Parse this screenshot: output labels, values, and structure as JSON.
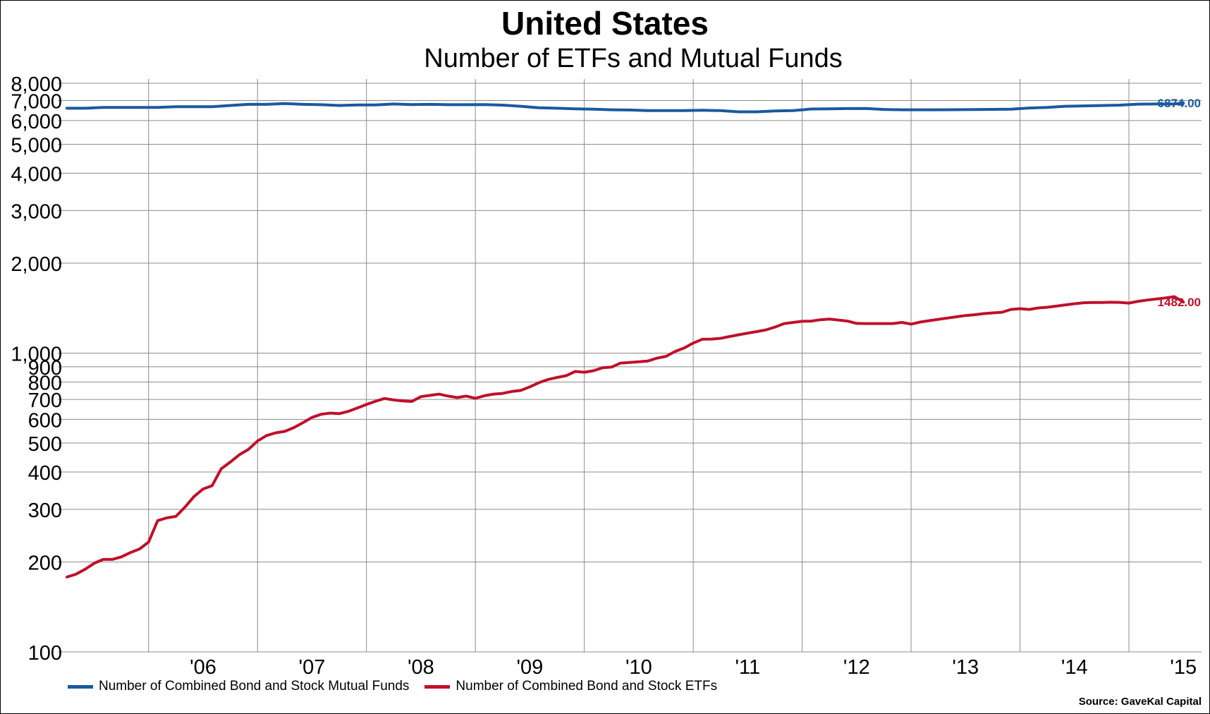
{
  "title": "United States",
  "subtitle": "Number of ETFs and Mutual Funds",
  "source": "Source: GaveKal Capital",
  "colors": {
    "mutual_funds": "#1a5a9e",
    "etfs": "#c0102a",
    "grid": "#8c8c8c"
  },
  "chart_data": {
    "type": "line",
    "title": "United States",
    "subtitle": "Number of ETFs and Mutual Funds",
    "y_scale": "log",
    "ylim": [
      100,
      8000
    ],
    "y_ticks": [
      100,
      200,
      300,
      400,
      500,
      600,
      700,
      800,
      900,
      1000,
      2000,
      3000,
      4000,
      5000,
      6000,
      7000,
      8000
    ],
    "y_tick_labels": [
      "100",
      "200",
      "300",
      "400",
      "500",
      "600",
      "700",
      "800",
      "900",
      "1,000",
      "2,000",
      "3,000",
      "4,000",
      "5,000",
      "6,000",
      "7,000",
      "8,000"
    ],
    "xlim": [
      "2005-03",
      "2015-09"
    ],
    "x_gridlines": [
      "2006-01",
      "2007-01",
      "2008-01",
      "2009-01",
      "2010-01",
      "2011-01",
      "2012-01",
      "2013-01",
      "2014-01",
      "2015-01"
    ],
    "x_tick_labels": [
      "'06",
      "'07",
      "'08",
      "'09",
      "'10",
      "'11",
      "'12",
      "'13",
      "'14",
      "'15"
    ],
    "x_tick_dates": [
      "2006-07",
      "2007-07",
      "2008-07",
      "2009-07",
      "2010-07",
      "2011-07",
      "2012-07",
      "2013-07",
      "2014-07",
      "2015-07"
    ],
    "grid": true,
    "legend_position": "bottom-left",
    "series": [
      {
        "name": "Number of Combined Bond and Stock Mutual Funds",
        "color": "#1a5a9e",
        "end_label": "6874.00",
        "points": [
          [
            "2005-04",
            6600
          ],
          [
            "2005-06",
            6600
          ],
          [
            "2005-08",
            6640
          ],
          [
            "2006-02",
            6640
          ],
          [
            "2006-04",
            6680
          ],
          [
            "2006-08",
            6680
          ],
          [
            "2006-10",
            6740
          ],
          [
            "2006-12",
            6800
          ],
          [
            "2007-02",
            6800
          ],
          [
            "2007-04",
            6840
          ],
          [
            "2007-06",
            6800
          ],
          [
            "2007-08",
            6780
          ],
          [
            "2007-10",
            6740
          ],
          [
            "2007-12",
            6770
          ],
          [
            "2008-02",
            6770
          ],
          [
            "2008-04",
            6820
          ],
          [
            "2008-06",
            6790
          ],
          [
            "2008-08",
            6800
          ],
          [
            "2008-10",
            6780
          ],
          [
            "2008-12",
            6780
          ],
          [
            "2009-02",
            6790
          ],
          [
            "2009-04",
            6760
          ],
          [
            "2009-06",
            6700
          ],
          [
            "2009-08",
            6620
          ],
          [
            "2009-10",
            6600
          ],
          [
            "2009-12",
            6570
          ],
          [
            "2010-02",
            6550
          ],
          [
            "2010-04",
            6520
          ],
          [
            "2010-06",
            6510
          ],
          [
            "2010-08",
            6480
          ],
          [
            "2010-10",
            6480
          ],
          [
            "2010-12",
            6480
          ],
          [
            "2011-02",
            6500
          ],
          [
            "2011-04",
            6480
          ],
          [
            "2011-06",
            6420
          ],
          [
            "2011-08",
            6420
          ],
          [
            "2011-10",
            6460
          ],
          [
            "2011-12",
            6480
          ],
          [
            "2012-02",
            6560
          ],
          [
            "2012-04",
            6570
          ],
          [
            "2012-06",
            6580
          ],
          [
            "2012-08",
            6590
          ],
          [
            "2012-10",
            6540
          ],
          [
            "2012-12",
            6520
          ],
          [
            "2013-04",
            6520
          ],
          [
            "2013-08",
            6530
          ],
          [
            "2013-12",
            6550
          ],
          [
            "2014-02",
            6610
          ],
          [
            "2014-04",
            6640
          ],
          [
            "2014-06",
            6700
          ],
          [
            "2014-08",
            6720
          ],
          [
            "2014-12",
            6760
          ],
          [
            "2015-02",
            6810
          ],
          [
            "2015-04",
            6820
          ],
          [
            "2015-06",
            6820
          ],
          [
            "2015-07",
            6874
          ]
        ]
      },
      {
        "name": "Number of Combined Bond and Stock ETFs",
        "color": "#c0102a",
        "end_label": "1482.00",
        "points": [
          [
            "2005-04",
            178
          ],
          [
            "2005-05",
            182
          ],
          [
            "2005-06",
            189
          ],
          [
            "2005-07",
            198
          ],
          [
            "2005-08",
            204
          ],
          [
            "2005-09",
            204
          ],
          [
            "2005-10",
            208
          ],
          [
            "2005-11",
            215
          ],
          [
            "2005-12",
            221
          ],
          [
            "2006-01",
            233
          ],
          [
            "2006-02",
            275
          ],
          [
            "2006-03",
            281
          ],
          [
            "2006-04",
            284
          ],
          [
            "2006-05",
            305
          ],
          [
            "2006-06",
            331
          ],
          [
            "2006-07",
            351
          ],
          [
            "2006-08",
            360
          ],
          [
            "2006-09",
            410
          ],
          [
            "2006-10",
            432
          ],
          [
            "2006-11",
            457
          ],
          [
            "2006-12",
            476
          ],
          [
            "2007-01",
            508
          ],
          [
            "2007-02",
            530
          ],
          [
            "2007-03",
            541
          ],
          [
            "2007-04",
            547
          ],
          [
            "2007-05",
            563
          ],
          [
            "2007-06",
            585
          ],
          [
            "2007-07",
            609
          ],
          [
            "2007-08",
            624
          ],
          [
            "2007-09",
            630
          ],
          [
            "2007-10",
            627
          ],
          [
            "2007-11",
            638
          ],
          [
            "2007-12",
            655
          ],
          [
            "2008-01",
            673
          ],
          [
            "2008-02",
            690
          ],
          [
            "2008-03",
            705
          ],
          [
            "2008-04",
            697
          ],
          [
            "2008-05",
            692
          ],
          [
            "2008-06",
            689
          ],
          [
            "2008-07",
            715
          ],
          [
            "2008-08",
            722
          ],
          [
            "2008-09",
            729
          ],
          [
            "2008-10",
            718
          ],
          [
            "2008-11",
            710
          ],
          [
            "2008-12",
            718
          ],
          [
            "2009-01",
            706
          ],
          [
            "2009-02",
            720
          ],
          [
            "2009-03",
            729
          ],
          [
            "2009-04",
            733
          ],
          [
            "2009-05",
            744
          ],
          [
            "2009-06",
            750
          ],
          [
            "2009-07",
            771
          ],
          [
            "2009-08",
            796
          ],
          [
            "2009-09",
            816
          ],
          [
            "2009-10",
            829
          ],
          [
            "2009-11",
            840
          ],
          [
            "2009-12",
            868
          ],
          [
            "2010-01",
            863
          ],
          [
            "2010-02",
            873
          ],
          [
            "2010-03",
            893
          ],
          [
            "2010-04",
            898
          ],
          [
            "2010-05",
            926
          ],
          [
            "2010-06",
            930
          ],
          [
            "2010-07",
            935
          ],
          [
            "2010-08",
            941
          ],
          [
            "2010-09",
            962
          ],
          [
            "2010-10",
            975
          ],
          [
            "2010-11",
            1013
          ],
          [
            "2010-12",
            1040
          ],
          [
            "2011-01",
            1080
          ],
          [
            "2011-02",
            1113
          ],
          [
            "2011-03",
            1114
          ],
          [
            "2011-04",
            1120
          ],
          [
            "2011-05",
            1136
          ],
          [
            "2011-06",
            1152
          ],
          [
            "2011-07",
            1166
          ],
          [
            "2011-08",
            1180
          ],
          [
            "2011-09",
            1196
          ],
          [
            "2011-10",
            1222
          ],
          [
            "2011-11",
            1255
          ],
          [
            "2011-12",
            1267
          ],
          [
            "2012-01",
            1278
          ],
          [
            "2012-02",
            1280
          ],
          [
            "2012-03",
            1293
          ],
          [
            "2012-04",
            1300
          ],
          [
            "2012-05",
            1290
          ],
          [
            "2012-06",
            1280
          ],
          [
            "2012-07",
            1257
          ],
          [
            "2012-08",
            1256
          ],
          [
            "2012-09",
            1256
          ],
          [
            "2012-10",
            1256
          ],
          [
            "2012-11",
            1256
          ],
          [
            "2012-12",
            1267
          ],
          [
            "2013-01",
            1250
          ],
          [
            "2013-02",
            1270
          ],
          [
            "2013-03",
            1284
          ],
          [
            "2013-04",
            1297
          ],
          [
            "2013-05",
            1310
          ],
          [
            "2013-06",
            1323
          ],
          [
            "2013-07",
            1336
          ],
          [
            "2013-08",
            1344
          ],
          [
            "2013-09",
            1356
          ],
          [
            "2013-10",
            1363
          ],
          [
            "2013-11",
            1370
          ],
          [
            "2013-12",
            1400
          ],
          [
            "2014-01",
            1408
          ],
          [
            "2014-02",
            1400
          ],
          [
            "2014-03",
            1416
          ],
          [
            "2014-04",
            1424
          ],
          [
            "2014-05",
            1436
          ],
          [
            "2014-06",
            1450
          ],
          [
            "2014-07",
            1463
          ],
          [
            "2014-08",
            1474
          ],
          [
            "2014-09",
            1477
          ],
          [
            "2014-10",
            1477
          ],
          [
            "2014-11",
            1480
          ],
          [
            "2014-12",
            1478
          ],
          [
            "2015-01",
            1470
          ],
          [
            "2015-02",
            1490
          ],
          [
            "2015-03",
            1505
          ],
          [
            "2015-04",
            1517
          ],
          [
            "2015-05",
            1530
          ],
          [
            "2015-06",
            1545
          ],
          [
            "2015-07",
            1482
          ]
        ]
      }
    ]
  }
}
